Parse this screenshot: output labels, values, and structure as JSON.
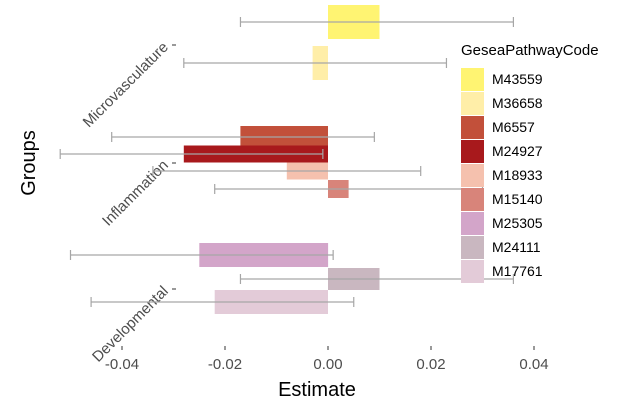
{
  "chart_data": {
    "type": "bar",
    "orientation": "horizontal",
    "xlabel": "Estimate",
    "ylabel": "Groups",
    "xlim": [
      -0.06,
      0.05
    ],
    "x_ticks": [
      -0.04,
      -0.02,
      0.0,
      0.02,
      0.04
    ],
    "x_tick_labels": [
      "-0.04",
      "-0.02",
      "0.00",
      "0.02",
      "0.04"
    ],
    "groups": [
      "Microvasculature",
      "Inflammation",
      "Developmental"
    ],
    "legend_title": "GeseaPathwayCode",
    "legend_position": "right",
    "grid": false,
    "series": [
      {
        "name": "M43559",
        "group": "Microvasculature",
        "color": "#FFF472",
        "estimate": 0.01,
        "ci_low": -0.017,
        "ci_high": 0.036
      },
      {
        "name": "M36658",
        "group": "Microvasculature",
        "color": "#FFEEA8",
        "estimate": -0.003,
        "ci_low": -0.028,
        "ci_high": 0.023
      },
      {
        "name": "M6557",
        "group": "Inflammation",
        "color": "#C2503A",
        "estimate": -0.017,
        "ci_low": -0.042,
        "ci_high": 0.009
      },
      {
        "name": "M24927",
        "group": "Inflammation",
        "color": "#A8191C",
        "estimate": -0.028,
        "ci_low": -0.052,
        "ci_high": -0.001
      },
      {
        "name": "M18933",
        "group": "Inflammation",
        "color": "#F5C1AE",
        "estimate": -0.008,
        "ci_low": -0.034,
        "ci_high": 0.018
      },
      {
        "name": "M15140",
        "group": "Inflammation",
        "color": "#D8847A",
        "estimate": 0.004,
        "ci_low": -0.022,
        "ci_high": 0.03
      },
      {
        "name": "M25305",
        "group": "Developmental",
        "color": "#D3A5C9",
        "estimate": -0.025,
        "ci_low": -0.05,
        "ci_high": 0.001
      },
      {
        "name": "M24111",
        "group": "Developmental",
        "color": "#C9B7C0",
        "estimate": 0.01,
        "ci_low": -0.017,
        "ci_high": 0.036
      },
      {
        "name": "M17761",
        "group": "Developmental",
        "color": "#E3CBD8",
        "estimate": -0.022,
        "ci_low": -0.046,
        "ci_high": 0.005
      }
    ],
    "ci_color": "#A6A6A6"
  }
}
